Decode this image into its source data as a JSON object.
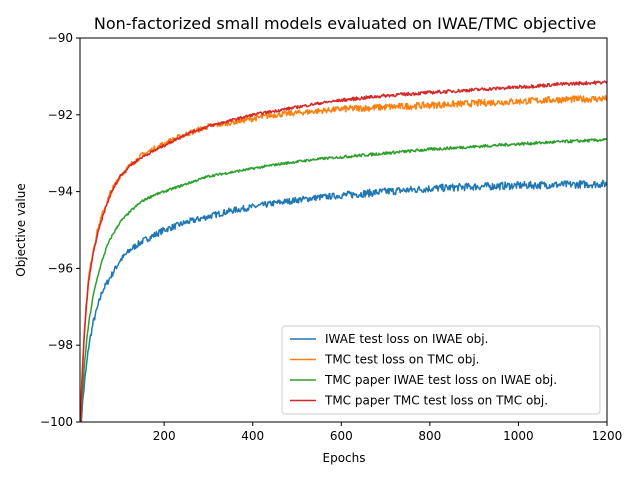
{
  "chart_data": {
    "type": "line",
    "title": "Non-factorized small models evaluated on IWAE/TMC objective",
    "xlabel": "Epochs",
    "ylabel": "Objective value",
    "xlim": [
      10,
      1200
    ],
    "ylim": [
      -100,
      -90
    ],
    "x_ticks": [
      200,
      400,
      600,
      800,
      1000,
      1200
    ],
    "y_ticks": [
      -100,
      -98,
      -96,
      -94,
      -92,
      -90
    ],
    "grid": false,
    "legend_position": "lower-right",
    "series": [
      {
        "name": "IWAE test loss on IWAE obj.",
        "color": "#1f77b4",
        "x": [
          10,
          15,
          20,
          25,
          30,
          40,
          50,
          60,
          70,
          80,
          100,
          125,
          150,
          175,
          200,
          250,
          300,
          350,
          400,
          450,
          500,
          550,
          600,
          700,
          800,
          900,
          1000,
          1100,
          1200
        ],
        "y": [
          -100.5,
          -99.6,
          -99.0,
          -98.5,
          -98.0,
          -97.4,
          -97.0,
          -96.6,
          -96.4,
          -96.2,
          -95.8,
          -95.5,
          -95.3,
          -95.15,
          -95.0,
          -94.8,
          -94.65,
          -94.5,
          -94.4,
          -94.3,
          -94.22,
          -94.15,
          -94.1,
          -94.0,
          -93.92,
          -93.87,
          -93.84,
          -93.82,
          -93.8
        ]
      },
      {
        "name": "TMC test loss on TMC obj.",
        "color": "#ff7f0e",
        "x": [
          10,
          15,
          20,
          25,
          30,
          40,
          50,
          60,
          70,
          80,
          100,
          125,
          150,
          175,
          200,
          250,
          300,
          350,
          400,
          450,
          500,
          550,
          600,
          700,
          800,
          900,
          1000,
          1100,
          1200
        ],
        "y": [
          -100.2,
          -98.6,
          -97.6,
          -96.8,
          -96.2,
          -95.5,
          -95.0,
          -94.6,
          -94.3,
          -94.0,
          -93.6,
          -93.3,
          -93.05,
          -92.9,
          -92.75,
          -92.5,
          -92.3,
          -92.2,
          -92.1,
          -92.0,
          -91.95,
          -91.9,
          -91.85,
          -91.8,
          -91.75,
          -91.7,
          -91.65,
          -91.6,
          -91.58
        ]
      },
      {
        "name": "TMC paper IWAE test loss on IWAE obj.",
        "color": "#2ca02c",
        "x": [
          10,
          15,
          20,
          25,
          30,
          40,
          50,
          60,
          70,
          80,
          100,
          125,
          150,
          175,
          200,
          250,
          300,
          350,
          400,
          450,
          500,
          550,
          600,
          700,
          800,
          900,
          1000,
          1100,
          1200
        ],
        "y": [
          -100.5,
          -99.3,
          -98.5,
          -97.9,
          -97.4,
          -96.7,
          -96.2,
          -95.8,
          -95.45,
          -95.2,
          -94.8,
          -94.5,
          -94.25,
          -94.1,
          -94.0,
          -93.8,
          -93.6,
          -93.5,
          -93.4,
          -93.3,
          -93.22,
          -93.15,
          -93.1,
          -93.0,
          -92.9,
          -92.83,
          -92.76,
          -92.7,
          -92.65
        ]
      },
      {
        "name": "TMC paper TMC test loss on TMC obj.",
        "color": "#d62728",
        "x": [
          10,
          15,
          20,
          25,
          30,
          40,
          50,
          60,
          70,
          80,
          100,
          125,
          150,
          175,
          200,
          250,
          300,
          350,
          400,
          450,
          500,
          550,
          600,
          700,
          800,
          900,
          1000,
          1100,
          1200
        ],
        "y": [
          -100.5,
          -98.8,
          -97.7,
          -96.9,
          -96.3,
          -95.6,
          -95.1,
          -94.7,
          -94.35,
          -94.05,
          -93.6,
          -93.3,
          -93.1,
          -92.95,
          -92.8,
          -92.5,
          -92.3,
          -92.15,
          -92.0,
          -91.9,
          -91.8,
          -91.7,
          -91.62,
          -91.5,
          -91.42,
          -91.35,
          -91.28,
          -91.2,
          -91.15
        ]
      }
    ]
  }
}
